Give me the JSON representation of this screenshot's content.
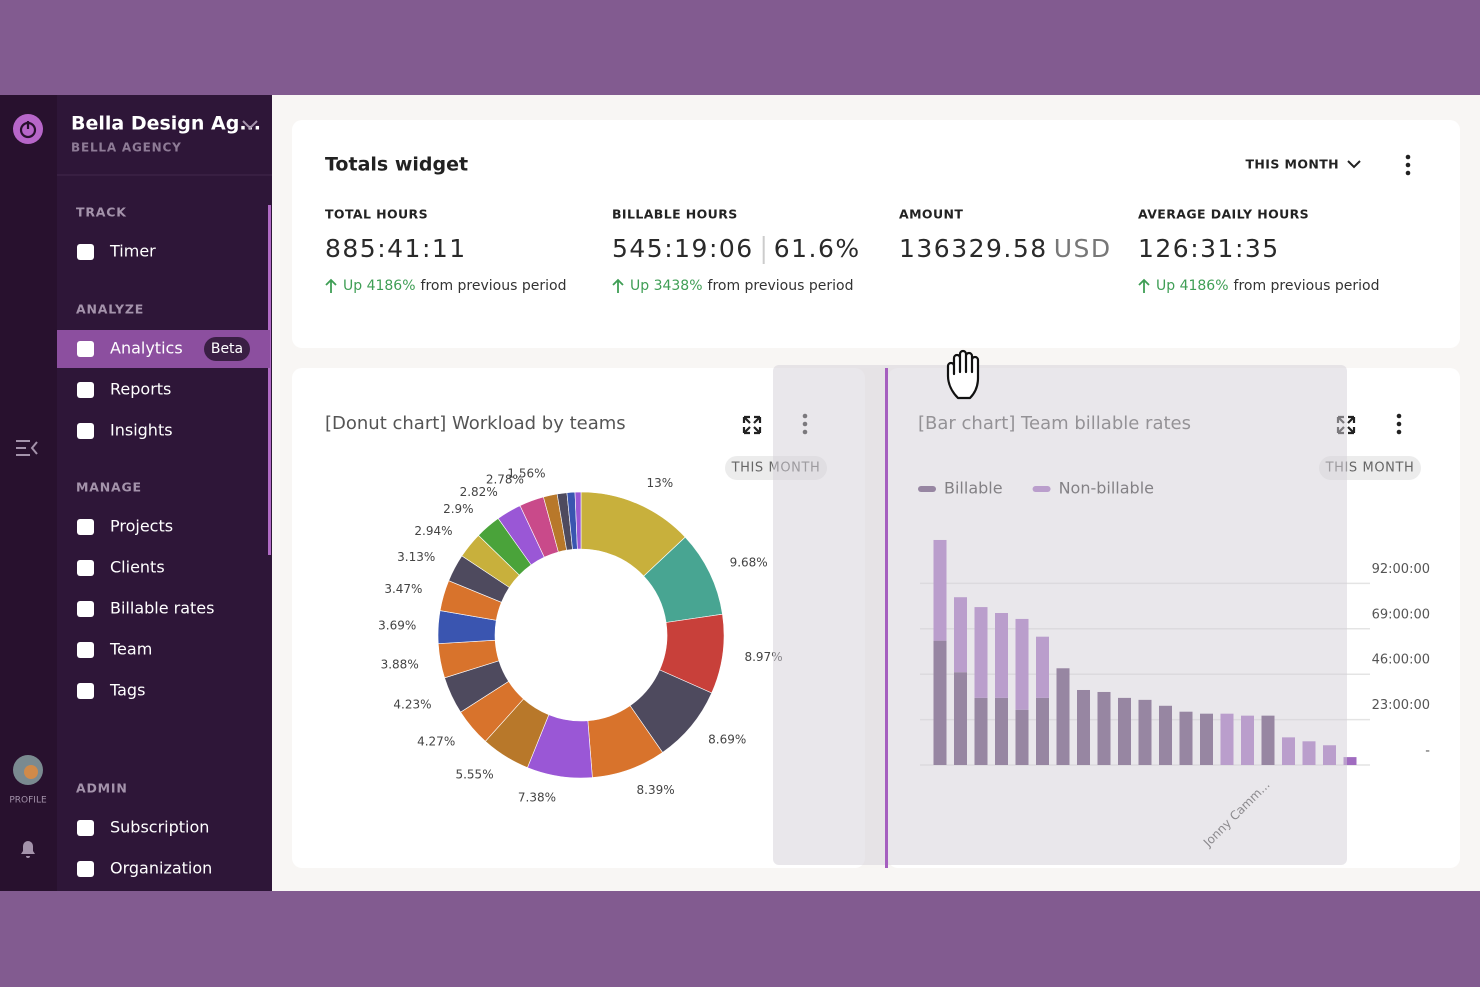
{
  "sidebar": {
    "org_name": "Bella Design Ag...",
    "org_sub": "BELLA AGENCY",
    "profile_label": "PROFILE",
    "sections": [
      {
        "title": "TRACK",
        "items": [
          {
            "label": "Timer"
          }
        ]
      },
      {
        "title": "ANALYZE",
        "items": [
          {
            "label": "Analytics",
            "badge": "Beta"
          },
          {
            "label": "Reports"
          },
          {
            "label": "Insights"
          }
        ]
      },
      {
        "title": "MANAGE",
        "items": [
          {
            "label": "Projects"
          },
          {
            "label": "Clients"
          },
          {
            "label": "Billable rates"
          },
          {
            "label": "Team"
          },
          {
            "label": "Tags"
          }
        ]
      },
      {
        "title": "ADMIN",
        "items": [
          {
            "label": "Subscription"
          },
          {
            "label": "Organization"
          }
        ]
      }
    ]
  },
  "totals": {
    "title": "Totals widget",
    "period": "THIS MONTH",
    "stats": [
      {
        "label": "TOTAL HOURS",
        "value": "885:41:11",
        "change": "Up 4186%",
        "suffix": "from previous period"
      },
      {
        "label": "BILLABLE HOURS",
        "value": "545:19:06",
        "extra": "61.6%",
        "change": "Up 3438%",
        "suffix": "from previous period"
      },
      {
        "label": "AMOUNT",
        "value": "136329.58",
        "unit": "USD"
      },
      {
        "label": "AVERAGE DAILY HOURS",
        "value": "126:31:35",
        "change": "Up 4186%",
        "suffix": "from previous period"
      }
    ]
  },
  "chart_data": [
    {
      "type": "pie",
      "donut": true,
      "title": "[Donut chart] Workload by teams",
      "period": "THIS MONTH",
      "values": [
        13,
        9.68,
        8.97,
        8.69,
        8.39,
        7.38,
        5.55,
        4.27,
        4.23,
        3.88,
        3.69,
        3.47,
        3.13,
        2.94,
        2.9,
        2.82,
        2.78,
        1.56,
        1.1,
        0.9,
        0.67
      ],
      "value_labels": [
        "13%",
        "9.68%",
        "8.97%",
        "8.69%",
        "8.39%",
        "7.38%",
        "5.55%",
        "4.27%",
        "4.23%",
        "3.88%",
        "3.69%",
        "3.47%",
        "3.13%",
        "2.94%",
        "2.9%",
        "2.82%",
        "2.78%",
        "1.56%",
        null,
        null,
        null
      ],
      "colors": [
        "#c8b03c",
        "#48a592",
        "#c8403a",
        "#4e4a5e",
        "#d8732c",
        "#9a57d6",
        "#b8782a",
        "#d8732c",
        "#4e4a5e",
        "#d8732c",
        "#3a55b0",
        "#d8732c",
        "#4e4a5e",
        "#c8b03c",
        "#4aa33a",
        "#9a57d6",
        "#c94a8a",
        "#b8782a",
        "#4e4a5e",
        "#3a55b0",
        "#9a57d6"
      ]
    },
    {
      "type": "bar",
      "stacked": true,
      "title": "[Bar chart] Team billable rates",
      "period": "THIS MONTH",
      "categories": [
        null,
        null,
        null,
        null,
        null,
        null,
        null,
        null,
        null,
        null,
        null,
        null,
        null,
        null,
        null,
        null,
        "Jonny Camm...",
        null,
        null,
        null,
        null
      ],
      "series": [
        {
          "name": "Billable",
          "color": "#5a3c6c",
          "values": [
            63,
            47,
            34,
            34,
            28,
            34,
            49,
            38,
            37,
            34,
            33,
            30,
            27,
            26,
            0,
            0,
            25,
            0,
            0,
            0,
            0
          ]
        },
        {
          "name": "Non-billable",
          "color": "#a06cc0",
          "values": [
            51,
            38,
            46,
            43,
            46,
            31,
            0,
            0,
            0,
            0,
            0,
            0,
            0,
            0,
            26,
            25,
            0,
            14,
            12,
            10,
            4
          ]
        }
      ],
      "ylim": [
        0,
        115
      ],
      "yticks": [
        {
          "value": 0,
          "label": "-"
        },
        {
          "value": 23,
          "label": "23:00:00"
        },
        {
          "value": 46,
          "label": "46:00:00"
        },
        {
          "value": 69,
          "label": "69:00:00"
        },
        {
          "value": 92,
          "label": "92:00:00"
        }
      ],
      "grid": true,
      "legend": "top-left"
    }
  ]
}
